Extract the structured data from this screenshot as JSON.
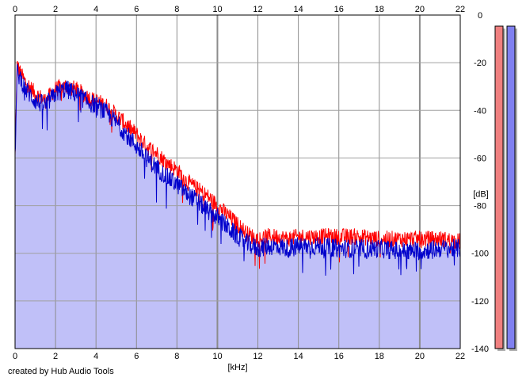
{
  "credit": "created by Hub Audio Tools",
  "chart_data": {
    "type": "line",
    "title": "",
    "xlabel": "[kHz]",
    "ylabel": "[dB]",
    "xlim": [
      0,
      22
    ],
    "ylim": [
      -140,
      0
    ],
    "x_ticks": [
      0,
      2,
      4,
      6,
      8,
      10,
      12,
      14,
      16,
      18,
      20,
      22
    ],
    "y_ticks": [
      0,
      -20,
      -40,
      -60,
      -80,
      -100,
      -120,
      -140
    ],
    "grid": true,
    "y_axis_side": "right",
    "x_axis_labels": "top-and-bottom",
    "fill_color": "#c0c0f8",
    "series": [
      {
        "color": "#ff0000",
        "x": [
          0,
          0.1,
          0.3,
          0.5,
          1,
          1.5,
          2,
          2.5,
          3,
          3.5,
          4,
          4.5,
          5,
          5.5,
          6,
          6.5,
          7,
          7.5,
          8,
          8.5,
          9,
          9.5,
          10,
          10.5,
          11,
          11.5,
          12,
          12.5,
          13,
          13.5,
          14,
          15,
          16,
          17,
          18,
          19,
          20,
          21,
          22
        ],
        "values": [
          -60,
          -21,
          -25,
          -28,
          -33,
          -36,
          -31,
          -30,
          -31,
          -34,
          -36,
          -38,
          -42,
          -46,
          -50,
          -55,
          -58,
          -62,
          -65,
          -70,
          -73,
          -76,
          -80,
          -84,
          -88,
          -92,
          -94,
          -93,
          -93,
          -94,
          -93,
          -93,
          -93,
          -93,
          -94,
          -94,
          -94,
          -94,
          -95
        ]
      },
      {
        "color": "#0000cc",
        "x": [
          0,
          0.1,
          0.3,
          0.5,
          1,
          1.5,
          2,
          2.5,
          3,
          3.5,
          4,
          4.5,
          5,
          5.5,
          6,
          6.5,
          7,
          7.5,
          8,
          8.5,
          9,
          9.5,
          10,
          10.5,
          11,
          11.5,
          12,
          12.5,
          13,
          13.5,
          14,
          15,
          16,
          17,
          18,
          19,
          20,
          21,
          22
        ],
        "values": [
          -60,
          -24,
          -27,
          -31,
          -36,
          -38,
          -33,
          -31,
          -33,
          -36,
          -38,
          -41,
          -45,
          -50,
          -55,
          -60,
          -64,
          -68,
          -71,
          -75,
          -78,
          -82,
          -85,
          -89,
          -93,
          -96,
          -98,
          -97,
          -97,
          -98,
          -97,
          -97,
          -98,
          -98,
          -98,
          -99,
          -99,
          -98,
          -98
        ]
      }
    ],
    "level_meters": [
      {
        "color": "#f08080",
        "level_db": 0
      },
      {
        "color": "#8080f0",
        "level_db": 0
      }
    ]
  }
}
